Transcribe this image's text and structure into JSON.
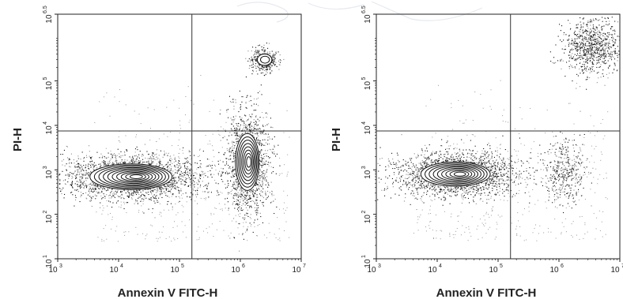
{
  "chart_data": [
    {
      "type": "scatter",
      "subtype": "flow-cytometry-contour-dot-plot",
      "xlabel": "Annexin V FITC-H",
      "ylabel": "PI-H",
      "x_scale": "log",
      "y_scale": "log",
      "xlim": [
        1000,
        10000000
      ],
      "ylim": [
        10,
        3162278
      ],
      "x_ticks": [
        {
          "base": "10",
          "exp": "3",
          "value": 1000
        },
        {
          "base": "10",
          "exp": "4",
          "value": 10000
        },
        {
          "base": "10",
          "exp": "5",
          "value": 100000
        },
        {
          "base": "10",
          "exp": "6",
          "value": 1000000
        },
        {
          "base": "10",
          "exp": "7",
          "value": 10000000
        }
      ],
      "y_ticks": [
        {
          "base": "10",
          "exp": "1",
          "value": 10
        },
        {
          "base": "10",
          "exp": "2",
          "value": 100
        },
        {
          "base": "10",
          "exp": "3",
          "value": 1000
        },
        {
          "base": "10",
          "exp": "4",
          "value": 10000
        },
        {
          "base": "10",
          "exp": "5",
          "value": 100000
        },
        {
          "base": "10",
          "exp": "6.5",
          "value": 3162278
        }
      ],
      "quadrant_gates": {
        "x": 160000,
        "y": 7500
      },
      "populations": [
        {
          "center_x": 16000,
          "center_y": 700,
          "spread_log_x": 0.45,
          "spread_log_y": 0.18,
          "contour_levels": 10
        },
        {
          "center_x": 1300000,
          "center_y": 1500,
          "spread_log_x": 0.13,
          "spread_log_y": 0.4,
          "contour_levels": 8
        },
        {
          "center_x": 2500000,
          "center_y": 300000,
          "spread_log_x": 0.08,
          "spread_log_y": 0.08,
          "contour_levels": 2
        }
      ]
    },
    {
      "type": "scatter",
      "subtype": "flow-cytometry-contour-dot-plot",
      "xlabel": "Annexin V FITC-H",
      "ylabel": "PI-H",
      "x_scale": "log",
      "y_scale": "log",
      "xlim": [
        1000,
        10000000
      ],
      "ylim": [
        10,
        3162278
      ],
      "x_ticks": [
        {
          "base": "10",
          "exp": "3",
          "value": 1000
        },
        {
          "base": "10",
          "exp": "4",
          "value": 10000
        },
        {
          "base": "10",
          "exp": "5",
          "value": 100000
        },
        {
          "base": "10",
          "exp": "6",
          "value": 1000000
        },
        {
          "base": "10",
          "exp": "7",
          "value": 10000000
        }
      ],
      "y_ticks": [
        {
          "base": "10",
          "exp": "1",
          "value": 10
        },
        {
          "base": "10",
          "exp": "2",
          "value": 100
        },
        {
          "base": "10",
          "exp": "3",
          "value": 1000
        },
        {
          "base": "10",
          "exp": "4",
          "value": 10000
        },
        {
          "base": "10",
          "exp": "5",
          "value": 100000
        },
        {
          "base": "10",
          "exp": "6.5",
          "value": 3162278
        }
      ],
      "quadrant_gates": {
        "x": 160000,
        "y": 7500
      },
      "populations": [
        {
          "center_x": 20000,
          "center_y": 800,
          "spread_log_x": 0.38,
          "spread_log_y": 0.17,
          "contour_levels": 9
        },
        {
          "center_x": 1200000,
          "center_y": 900,
          "spread_log_x": 0.12,
          "spread_log_y": 0.25,
          "contour_levels": 0
        },
        {
          "center_x": 3500000,
          "center_y": 600000,
          "spread_log_x": 0.18,
          "spread_log_y": 0.22,
          "contour_levels": 0
        }
      ]
    }
  ]
}
